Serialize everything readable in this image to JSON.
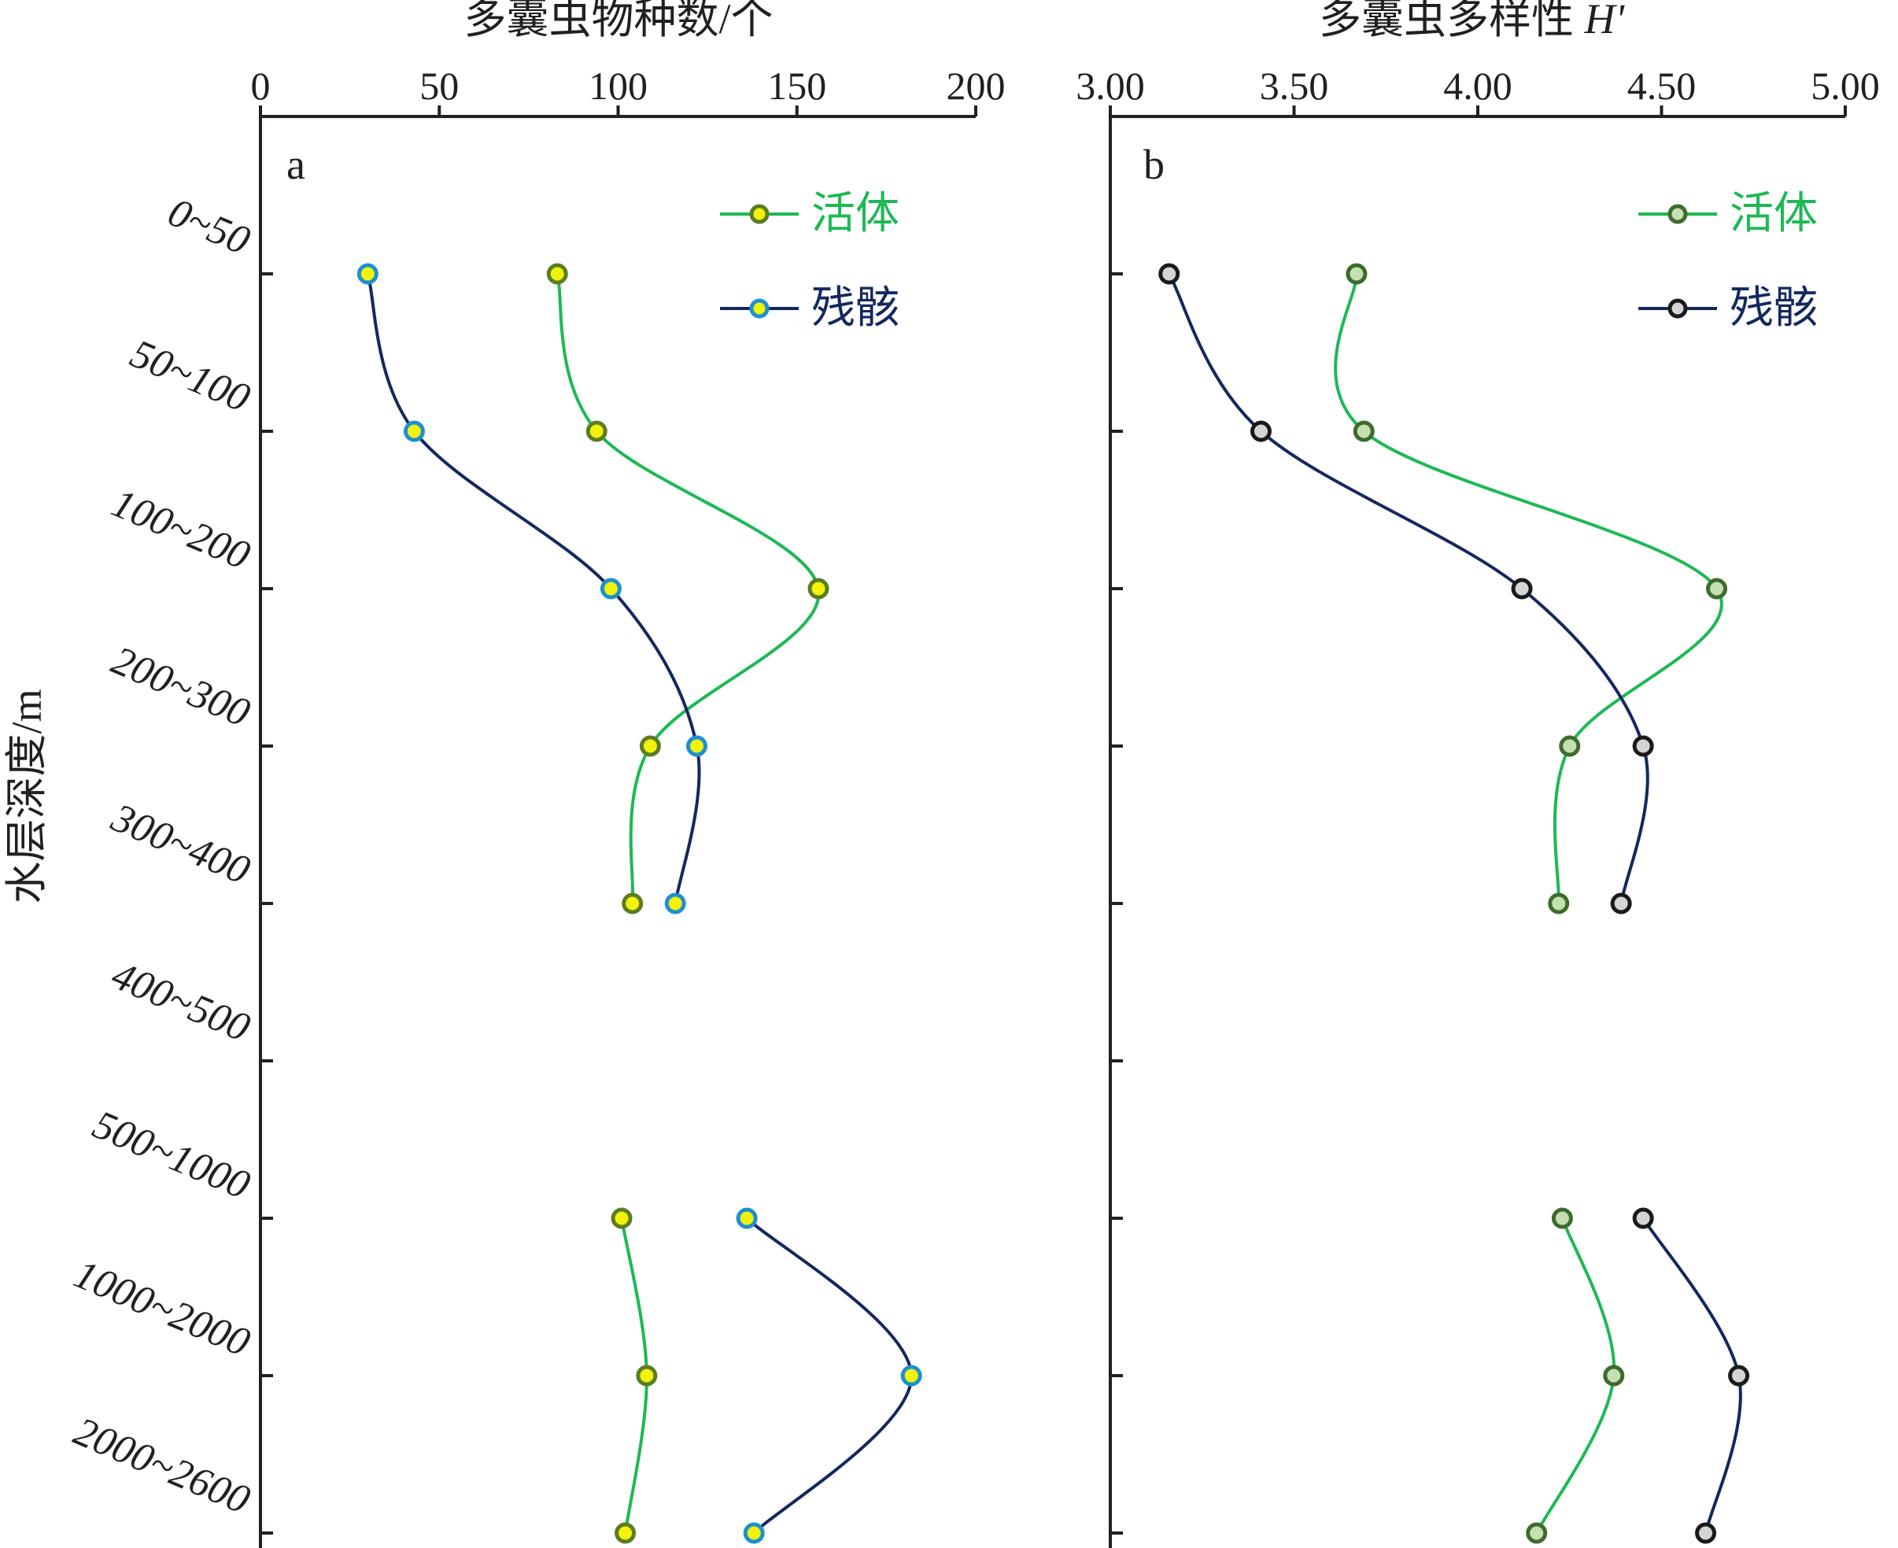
{
  "ylabel": "水层深度/m",
  "depth_categories": [
    "0~50",
    "50~100",
    "100~200",
    "200~300",
    "300~400",
    "400~500",
    "500~1000",
    "1000~2000",
    "2000~2600"
  ],
  "legend": {
    "alive": "活体",
    "dead": "残骸"
  },
  "colors": {
    "alive_line": "#1db954",
    "dead_line": "#14285f",
    "a_alive_fill": "#f2f20a",
    "a_alive_stroke": "#5a7d23",
    "a_dead_fill": "#f2f20a",
    "a_dead_stroke": "#1e8fd2",
    "b_alive_fill": "#c6dfb0",
    "b_alive_stroke": "#3d6b2d",
    "b_dead_fill": "#d4d4d4",
    "b_dead_stroke": "#1a1a1a"
  },
  "chart_data": [
    {
      "type": "line",
      "panel_label": "a",
      "xlabel": "多囊虫物种数/个",
      "xlim": [
        0,
        200
      ],
      "xticks": [
        "0",
        "50",
        "100",
        "150",
        "200"
      ],
      "series": [
        {
          "name": "活体",
          "segments": [
            {
              "depths": [
                "50",
                "100",
                "200",
                "300",
                "400"
              ],
              "values": [
                83,
                94,
                156,
                109,
                104
              ]
            },
            {
              "depths": [
                "1000",
                "2000",
                "2600"
              ],
              "values": [
                101,
                108,
                102
              ]
            }
          ]
        },
        {
          "name": "残骸",
          "segments": [
            {
              "depths": [
                "50",
                "100",
                "200",
                "300",
                "400"
              ],
              "values": [
                30,
                43,
                98,
                122,
                116
              ]
            },
            {
              "depths": [
                "1000",
                "2000",
                "2600"
              ],
              "values": [
                136,
                182,
                138
              ]
            }
          ]
        }
      ]
    },
    {
      "type": "line",
      "panel_label": "b",
      "xlabel": "多囊虫多样性",
      "xlabel_italic": "H'",
      "xlim": [
        3.0,
        5.0
      ],
      "xticks": [
        "3.00",
        "3.50",
        "4.00",
        "4.50",
        "5.00"
      ],
      "series": [
        {
          "name": "活体",
          "segments": [
            {
              "depths": [
                "50",
                "100",
                "200",
                "300",
                "400"
              ],
              "values": [
                3.67,
                3.69,
                4.65,
                4.25,
                4.22
              ]
            },
            {
              "depths": [
                "1000",
                "2000",
                "2600"
              ],
              "values": [
                4.23,
                4.37,
                4.16
              ]
            }
          ]
        },
        {
          "name": "残骸",
          "segments": [
            {
              "depths": [
                "50",
                "100",
                "200",
                "300",
                "400"
              ],
              "values": [
                3.16,
                3.41,
                4.12,
                4.45,
                4.39
              ]
            },
            {
              "depths": [
                "1000",
                "2000",
                "2600"
              ],
              "values": [
                4.45,
                4.71,
                4.62
              ]
            }
          ]
        }
      ]
    }
  ]
}
